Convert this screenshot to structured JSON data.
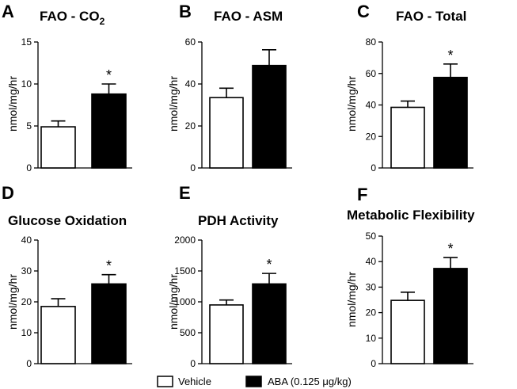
{
  "legend": {
    "vehicle_label": "Vehicle",
    "aba_label": "ABA (0.125 μg/kg)",
    "vehicle_color": "#ffffff",
    "aba_color": "#000000"
  },
  "chart_data": [
    {
      "type": "bar",
      "letter": "A",
      "title": "FAO - CO",
      "title_subscript": "2",
      "ylabel": "nmol/mg/hr",
      "ylim": [
        0,
        15
      ],
      "yticks": [
        0,
        5,
        10,
        15
      ],
      "categories": [
        "Vehicle",
        "ABA (0.125 μg/kg)"
      ],
      "values": [
        4.9,
        8.8
      ],
      "errors": [
        0.7,
        1.2
      ],
      "significance": [
        "",
        "*"
      ]
    },
    {
      "type": "bar",
      "letter": "B",
      "title": "FAO - ASM",
      "title_subscript": "",
      "ylabel": "nmol/mg/hr",
      "ylim": [
        0,
        60
      ],
      "yticks": [
        0,
        20,
        40,
        60
      ],
      "categories": [
        "Vehicle",
        "ABA (0.125 μg/kg)"
      ],
      "values": [
        33.5,
        48.8
      ],
      "errors": [
        4.5,
        7.5
      ],
      "significance": [
        "",
        ""
      ]
    },
    {
      "type": "bar",
      "letter": "C",
      "title": "FAO - Total",
      "title_subscript": "",
      "ylabel": "nmol/mg/hr",
      "ylim": [
        0,
        80
      ],
      "yticks": [
        0,
        20,
        40,
        60,
        80
      ],
      "categories": [
        "Vehicle",
        "ABA (0.125 μg/kg)"
      ],
      "values": [
        38.5,
        57.5
      ],
      "errors": [
        4.0,
        8.5
      ],
      "significance": [
        "",
        "*"
      ]
    },
    {
      "type": "bar",
      "letter": "D",
      "title": "Glucose Oxidation",
      "title_subscript": "",
      "ylabel": "nmol/mg/hr",
      "ylim": [
        0,
        40
      ],
      "yticks": [
        0,
        10,
        20,
        30,
        40
      ],
      "categories": [
        "Vehicle",
        "ABA (0.125 μg/kg)"
      ],
      "values": [
        18.5,
        25.8
      ],
      "errors": [
        2.5,
        3.0
      ],
      "significance": [
        "",
        "*"
      ]
    },
    {
      "type": "bar",
      "letter": "E",
      "title": "PDH Activity",
      "title_subscript": "",
      "ylabel": "nmol/mg/hr",
      "ylim": [
        0,
        2000
      ],
      "yticks": [
        0,
        500,
        1000,
        1500,
        2000
      ],
      "categories": [
        "Vehicle",
        "ABA (0.125 μg/kg)"
      ],
      "values": [
        950,
        1290
      ],
      "errors": [
        80,
        170
      ],
      "significance": [
        "",
        "*"
      ]
    },
    {
      "type": "bar",
      "letter": "F",
      "title": "Metabolic Flexibility",
      "title_subscript": "",
      "ylabel": "nmol/mg/hr",
      "ylim": [
        0,
        50
      ],
      "yticks": [
        0,
        10,
        20,
        30,
        40,
        50
      ],
      "categories": [
        "Vehicle",
        "ABA (0.125 μg/kg)"
      ],
      "values": [
        24.8,
        37.3
      ],
      "errors": [
        3.2,
        4.3
      ],
      "significance": [
        "",
        "*"
      ]
    }
  ]
}
